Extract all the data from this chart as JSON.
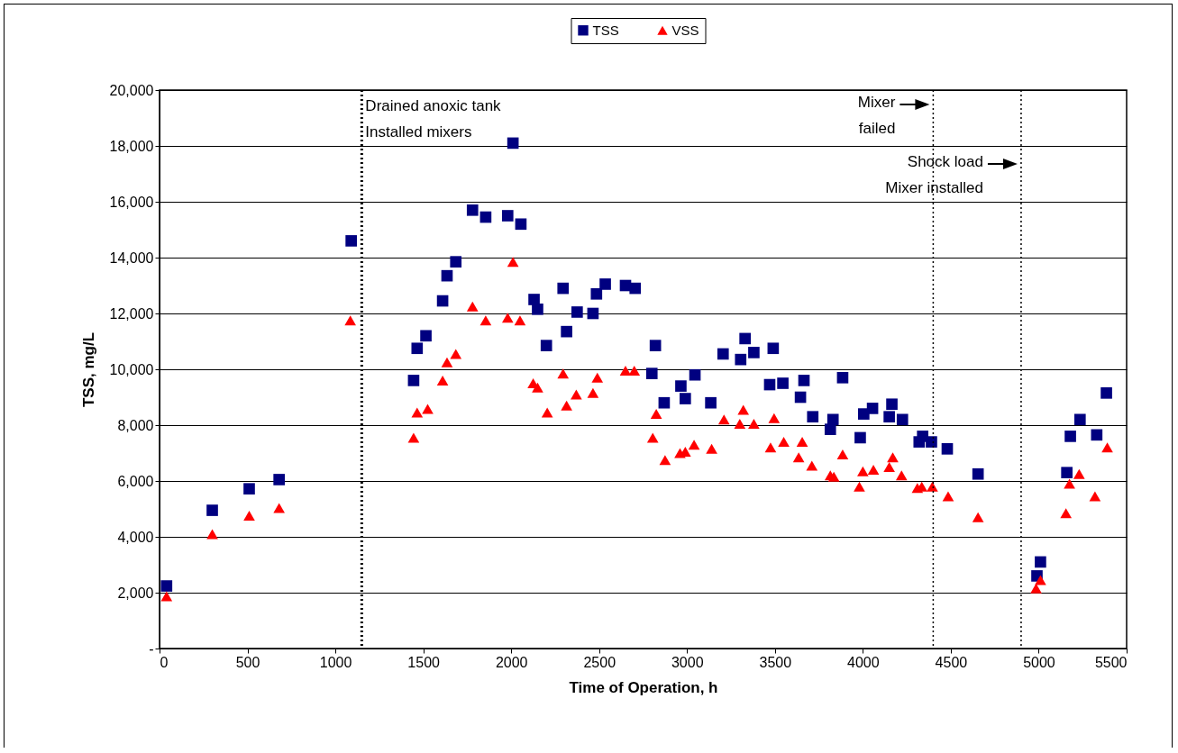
{
  "chart_data": {
    "type": "scatter",
    "xlabel": "Time of Operation, h",
    "ylabel": "TSS, mg/L",
    "xlim": [
      0,
      5500
    ],
    "xticks": [
      0,
      500,
      1000,
      1500,
      2000,
      2500,
      3000,
      3500,
      4000,
      4500,
      5000,
      5500
    ],
    "ylim": [
      0,
      20000
    ],
    "yticks": [
      {
        "value": 0,
        "label": "-"
      },
      {
        "value": 2000,
        "label": "2,000"
      },
      {
        "value": 4000,
        "label": "4,000"
      },
      {
        "value": 6000,
        "label": "6,000"
      },
      {
        "value": 8000,
        "label": "8,000"
      },
      {
        "value": 10000,
        "label": "10,000"
      },
      {
        "value": 12000,
        "label": "12,000"
      },
      {
        "value": 14000,
        "label": "14,000"
      },
      {
        "value": 16000,
        "label": "16,000"
      },
      {
        "value": 18000,
        "label": "18,000"
      },
      {
        "value": 20000,
        "label": "20,000"
      }
    ],
    "grid": "y",
    "legend": "top",
    "series": [
      {
        "name": "TSS",
        "color": "#000080",
        "marker": "square",
        "x": [
          40,
          300,
          510,
          680,
          1090,
          1445,
          1465,
          1515,
          1610,
          1635,
          1685,
          1780,
          1855,
          1980,
          2010,
          2055,
          2130,
          2150,
          2200,
          2295,
          2315,
          2375,
          2465,
          2485,
          2535,
          2650,
          2705,
          2800,
          2820,
          2870,
          2965,
          2990,
          3045,
          3135,
          3205,
          3305,
          3330,
          3380,
          3470,
          3490,
          3545,
          3645,
          3665,
          3715,
          3815,
          3830,
          3885,
          3985,
          4005,
          4055,
          4150,
          4165,
          4225,
          4320,
          4340,
          4390,
          4480,
          4655,
          4990,
          5010,
          5160,
          5180,
          5235,
          5330,
          5385
        ],
        "values": [
          2240,
          4950,
          5720,
          6050,
          14600,
          9600,
          10750,
          11200,
          12450,
          13350,
          13850,
          15700,
          15450,
          15500,
          18100,
          15200,
          12500,
          12150,
          10850,
          12900,
          11350,
          12050,
          12000,
          12700,
          13050,
          13000,
          12900,
          9850,
          10850,
          8800,
          9400,
          8950,
          9800,
          8800,
          10550,
          10350,
          11100,
          10600,
          9450,
          10750,
          9500,
          9000,
          9600,
          8300,
          7850,
          8200,
          9700,
          7550,
          8400,
          8600,
          8300,
          8750,
          8200,
          7400,
          7600,
          7400,
          7150,
          6250,
          2600,
          3100,
          6300,
          7600,
          8200,
          7650,
          9150
        ]
      },
      {
        "name": "VSS",
        "color": "#ff0000",
        "marker": "triangle",
        "x": [
          40,
          300,
          510,
          680,
          1085,
          1445,
          1465,
          1525,
          1610,
          1635,
          1685,
          1780,
          1855,
          1980,
          2010,
          2050,
          2125,
          2150,
          2205,
          2295,
          2315,
          2370,
          2465,
          2490,
          2650,
          2700,
          2805,
          2825,
          2875,
          2960,
          2990,
          3040,
          3140,
          3210,
          3300,
          3320,
          3380,
          3475,
          3495,
          3550,
          3635,
          3655,
          3710,
          3815,
          3835,
          3885,
          3980,
          4000,
          4060,
          4150,
          4170,
          4220,
          4310,
          4335,
          4395,
          4485,
          4655,
          4985,
          5010,
          5155,
          5175,
          5230,
          5320,
          5390
        ],
        "values": [
          1870,
          4100,
          4760,
          5030,
          11750,
          7550,
          8450,
          8580,
          9600,
          10250,
          10550,
          12250,
          11750,
          11850,
          13850,
          11750,
          9500,
          9350,
          8450,
          9850,
          8700,
          9100,
          9150,
          9700,
          9950,
          9950,
          7550,
          8400,
          6750,
          7000,
          7050,
          7300,
          7150,
          8200,
          8050,
          8550,
          8050,
          7200,
          8250,
          7400,
          6850,
          7400,
          6550,
          6200,
          6150,
          6950,
          5800,
          6350,
          6400,
          6500,
          6850,
          6200,
          5750,
          5800,
          5800,
          5450,
          4700,
          2150,
          2450,
          4850,
          5900,
          6250,
          5450,
          7200
        ]
      }
    ],
    "ref_lines": [
      {
        "axis": "x",
        "value": 1150,
        "label": "Drained anoxic tank\nInstalled mixers",
        "line_style": "dotted"
      },
      {
        "axis": "x",
        "value": 4400,
        "label": "Mixer\nfailed",
        "line_style": "dotted"
      },
      {
        "axis": "x",
        "value": 4900,
        "label": "Shock load\nMixer installed",
        "line_style": "dotted"
      }
    ]
  }
}
